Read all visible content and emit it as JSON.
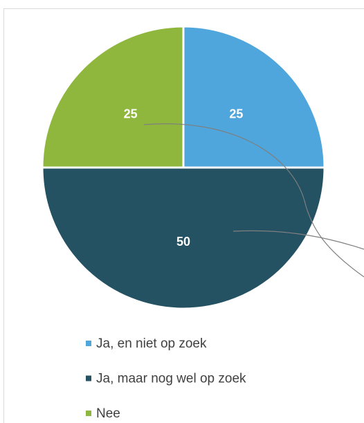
{
  "chart_data": {
    "type": "pie",
    "categories": [
      "Ja, en niet op zoek",
      "Ja, maar nog wel op zoek",
      "Nee"
    ],
    "values": [
      25,
      50,
      25
    ],
    "colors": [
      "#4ea6dc",
      "#245262",
      "#8fb73e"
    ],
    "legend": "bottom"
  }
}
